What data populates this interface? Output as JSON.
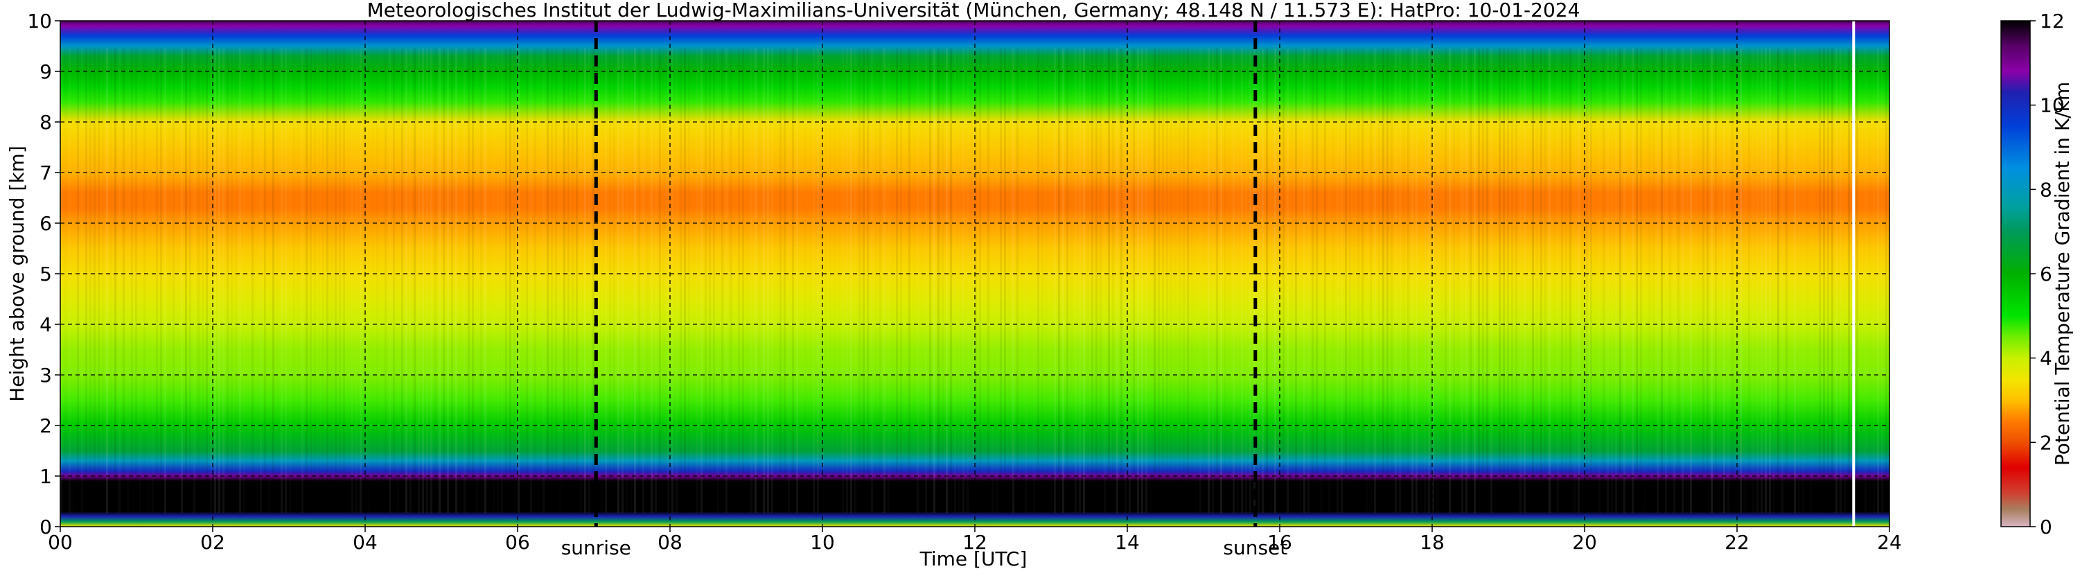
{
  "chart_data": {
    "type": "heatmap",
    "title": "Meteorologisches Institut der Ludwig-Maximilians-Universität (München, Germany; 48.148 N / 11.573 E):    HatPro: 10-01-2024",
    "xlabel": "Time [UTC]",
    "ylabel": "Height above ground [km]",
    "colorbar_label": "Potential Temperature Gradient in K/km",
    "xlim": [
      0,
      24
    ],
    "ylim": [
      0,
      10
    ],
    "clim": [
      0,
      12
    ],
    "x_ticks": [
      0,
      2,
      4,
      6,
      8,
      10,
      12,
      14,
      16,
      18,
      20,
      22,
      24
    ],
    "x_tick_labels": [
      "00",
      "02",
      "04",
      "06",
      "08",
      "10",
      "12",
      "14",
      "16",
      "18",
      "20",
      "22",
      "24"
    ],
    "y_ticks": [
      0,
      1,
      2,
      3,
      4,
      5,
      6,
      7,
      8,
      9,
      10
    ],
    "y_tick_labels": [
      "0",
      "1",
      "2",
      "3",
      "4",
      "5",
      "6",
      "7",
      "8",
      "9",
      "10"
    ],
    "colorbar_ticks": [
      0,
      2,
      4,
      6,
      8,
      10,
      12
    ],
    "colorbar_tick_labels": [
      "0",
      "2",
      "4",
      "6",
      "8",
      "10",
      "12"
    ],
    "grid": true,
    "events": [
      {
        "label": "sunrise",
        "time": 7.03
      },
      {
        "label": "sunset",
        "time": 15.68
      }
    ],
    "data_end_time": 23.53,
    "profile_km": [
      0.0,
      0.1,
      0.2,
      0.3,
      0.5,
      0.6,
      0.9,
      1.0,
      1.1,
      1.3,
      1.5,
      2.0,
      2.5,
      3.0,
      3.5,
      4.0,
      4.5,
      5.0,
      5.5,
      6.0,
      6.3,
      6.6,
      7.0,
      7.5,
      8.0,
      8.4,
      8.7,
      9.0,
      9.3,
      9.5,
      9.7,
      9.9,
      10.0
    ],
    "profile_gradient": [
      3.5,
      7.0,
      10.2,
      12.0,
      12.0,
      12.0,
      12.0,
      11.0,
      10.0,
      8.0,
      6.6,
      5.5,
      4.7,
      4.4,
      4.3,
      4.0,
      3.7,
      3.4,
      3.1,
      2.75,
      2.5,
      2.5,
      2.9,
      3.1,
      3.4,
      4.8,
      5.3,
      5.9,
      6.5,
      8.2,
      9.5,
      10.8,
      11.5
    ]
  },
  "colors": {
    "colormap": [
      {
        "v": 0.0,
        "c": "#d8b4c2"
      },
      {
        "v": 0.4,
        "c": "#a88060"
      },
      {
        "v": 0.8,
        "c": "#d04030"
      },
      {
        "v": 1.4,
        "c": "#e00000"
      },
      {
        "v": 2.0,
        "c": "#ee5000"
      },
      {
        "v": 2.5,
        "c": "#ff7b00"
      },
      {
        "v": 3.0,
        "c": "#ffc000"
      },
      {
        "v": 3.5,
        "c": "#f2e600"
      },
      {
        "v": 4.0,
        "c": "#c8f000"
      },
      {
        "v": 4.5,
        "c": "#70ee00"
      },
      {
        "v": 5.0,
        "c": "#00e400"
      },
      {
        "v": 6.0,
        "c": "#00b000"
      },
      {
        "v": 7.0,
        "c": "#009a5a"
      },
      {
        "v": 7.6,
        "c": "#00a0a0"
      },
      {
        "v": 8.5,
        "c": "#0090e0"
      },
      {
        "v": 9.5,
        "c": "#0040d8"
      },
      {
        "v": 10.3,
        "c": "#2020b0"
      },
      {
        "v": 10.8,
        "c": "#8a00a8"
      },
      {
        "v": 11.4,
        "c": "#580068"
      },
      {
        "v": 12.0,
        "c": "#000000"
      }
    ],
    "grid": "#000000",
    "event_line": "#000000",
    "data_end_line": "#ffffff"
  }
}
